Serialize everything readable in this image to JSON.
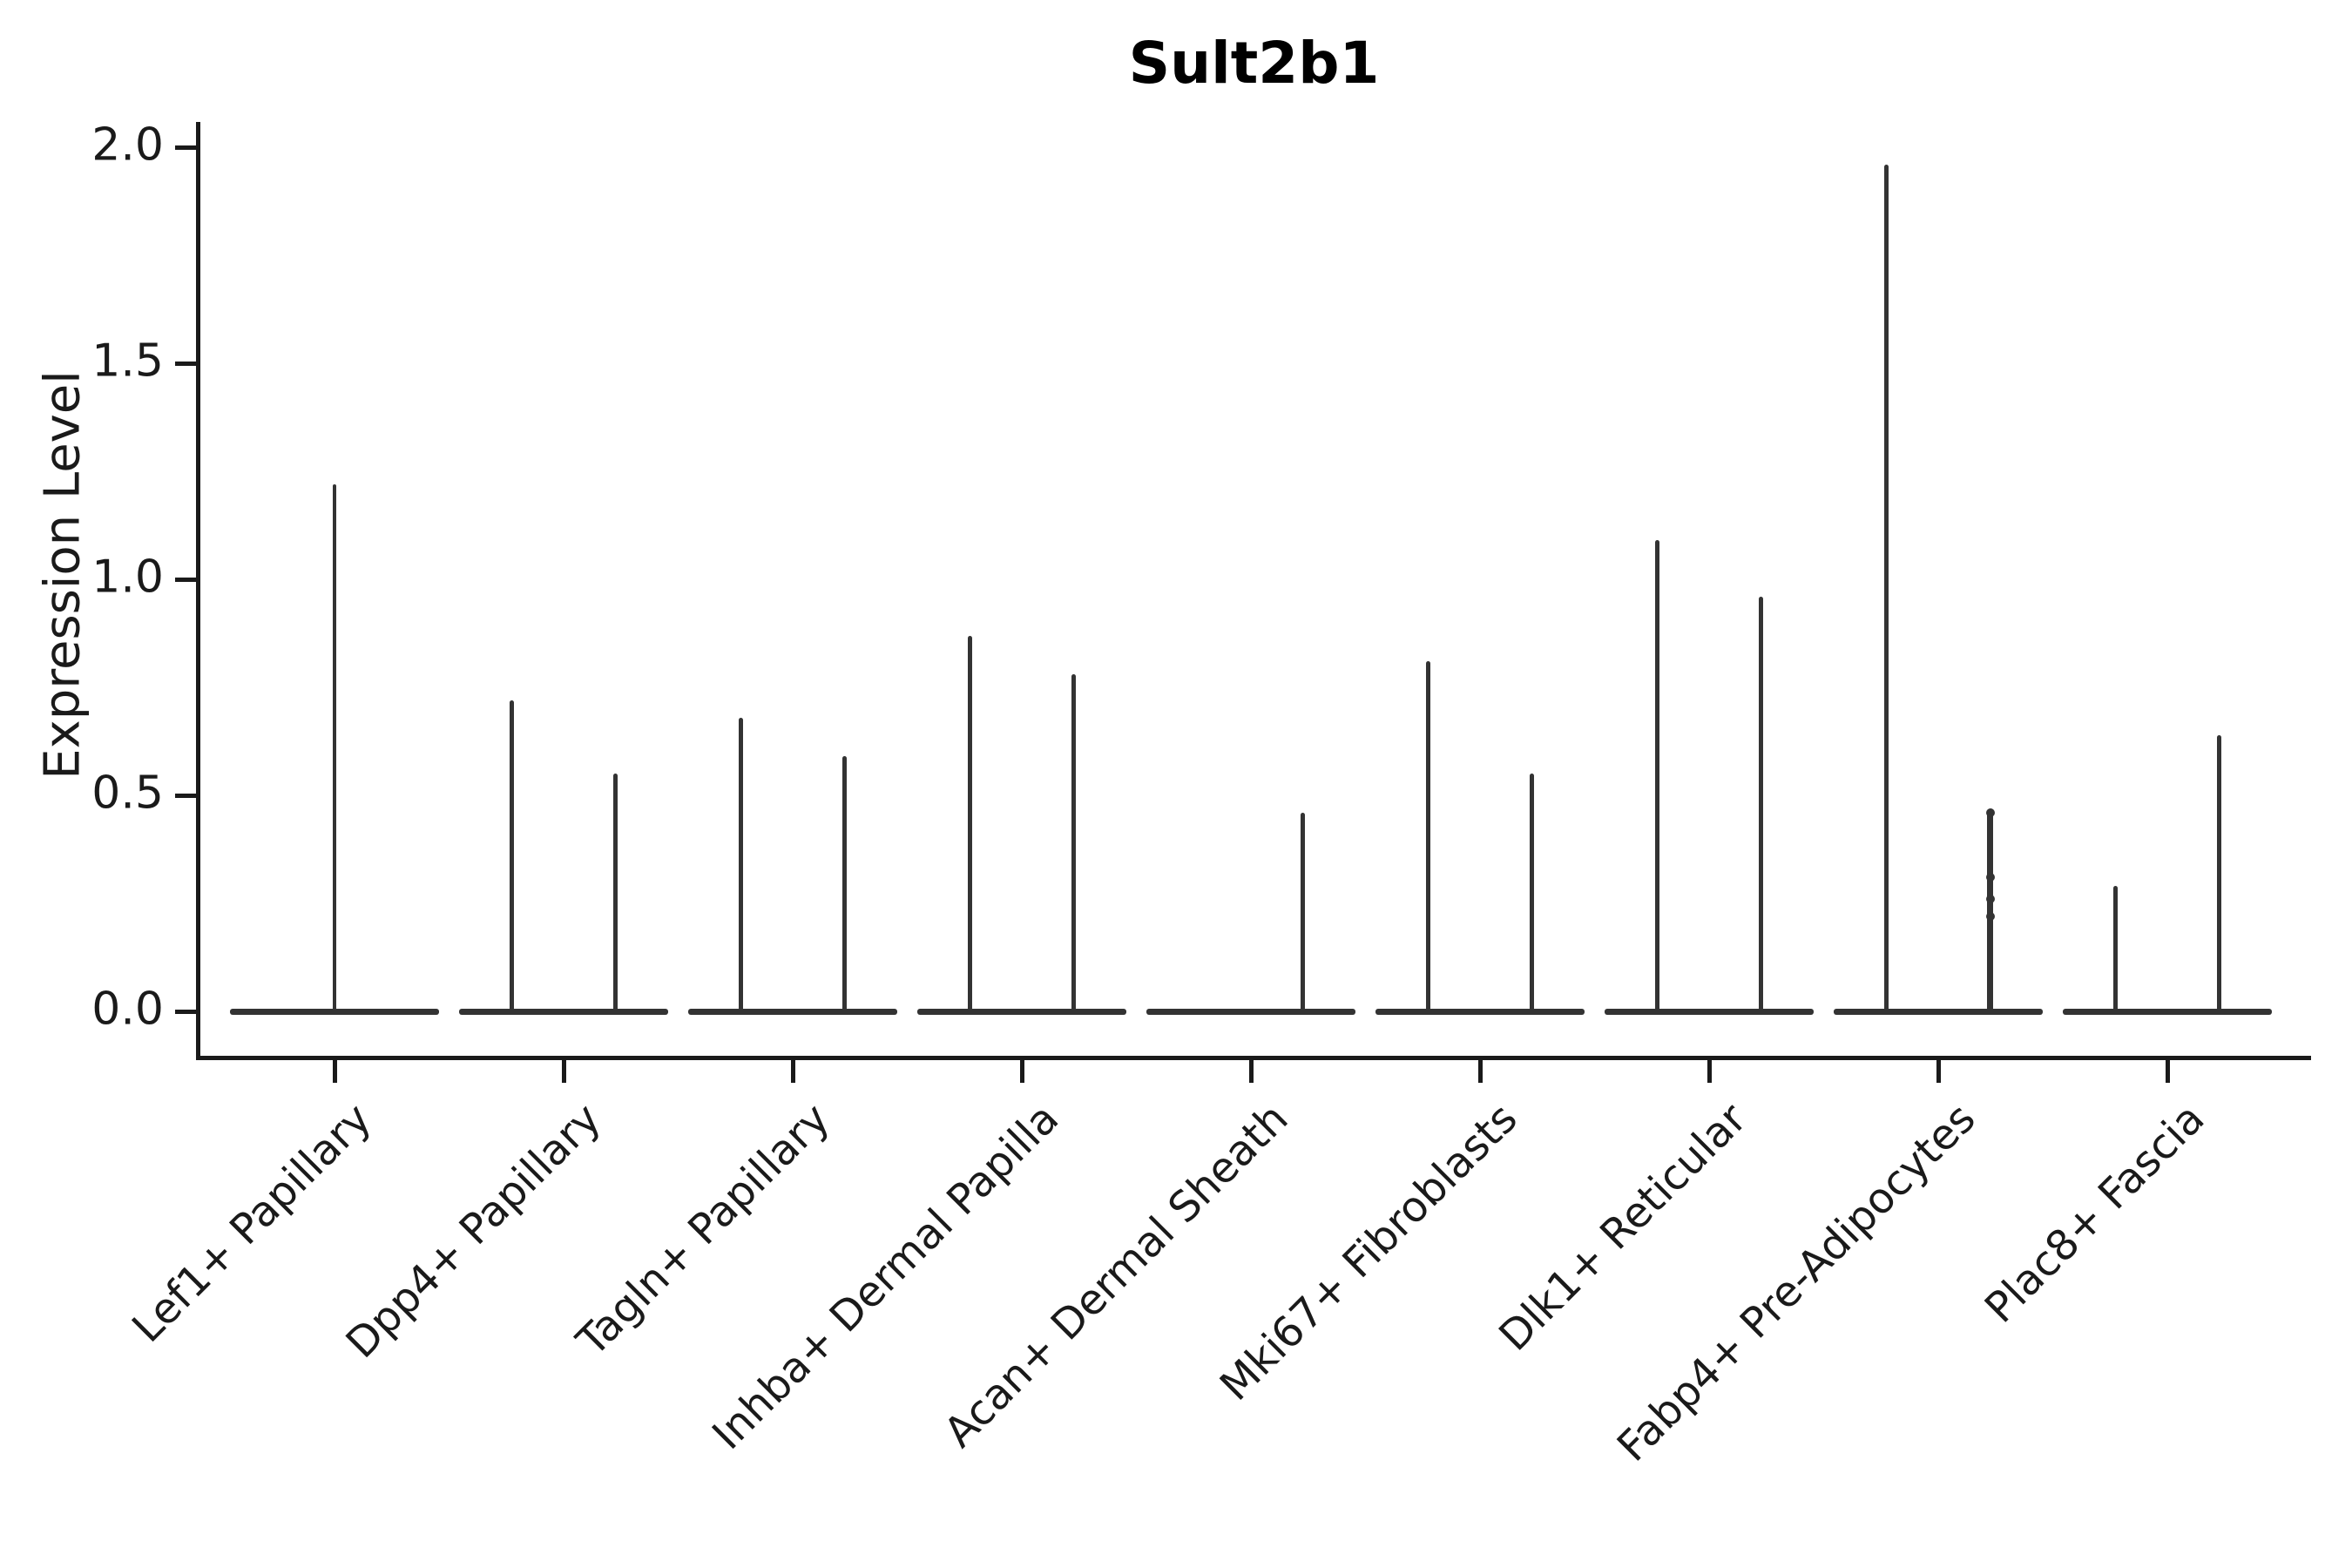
{
  "chart_data": {
    "type": "violin",
    "library_style": "seurat-vlnplot",
    "title": "Sult2b1",
    "xlabel": "",
    "ylabel": "Expression Level",
    "ylim": [
      0,
      2.05
    ],
    "yticks": [
      2.0,
      1.5,
      1.0,
      0.5,
      0.0
    ],
    "ytick_labels": [
      "2.0",
      "1.5",
      "1.0",
      "0.5",
      "0.0"
    ],
    "grid": false,
    "legend": null,
    "background_color": "#ffffff",
    "axis_color": "#1a1a1a",
    "violin_color": "#333333",
    "description": "Single-cell expression violin plot; each category shows flat violins collapsed at 0 with thin spikes rising to the maximum expression value of each sub-violin.",
    "categories": [
      "Lef1+ Papillary",
      "Dpp4+ Papillary",
      "Tagln+ Papillary",
      "Inhba+ Dermal Papilla",
      "Acan+ Dermal Sheath",
      "Mki67+ Fibroblasts",
      "Dlk1+ Reticular",
      "Fabp4+ Pre-Adipocytes",
      "Plac8+ Fascia"
    ],
    "violins": [
      {
        "category": "Lef1+ Papillary",
        "sub_violins": [
          {
            "position": "center",
            "max_expression": 1.22
          }
        ]
      },
      {
        "category": "Dpp4+ Papillary",
        "sub_violins": [
          {
            "position": "left",
            "max_expression": 0.72
          },
          {
            "position": "right",
            "max_expression": 0.55
          }
        ]
      },
      {
        "category": "Tagln+ Papillary",
        "sub_violins": [
          {
            "position": "left",
            "max_expression": 0.68
          },
          {
            "position": "right",
            "max_expression": 0.59
          }
        ]
      },
      {
        "category": "Inhba+ Dermal Papilla",
        "sub_violins": [
          {
            "position": "left",
            "max_expression": 0.87
          },
          {
            "position": "right",
            "max_expression": 0.78
          }
        ]
      },
      {
        "category": "Acan+ Dermal Sheath",
        "sub_violins": [
          {
            "position": "right",
            "max_expression": 0.46
          }
        ]
      },
      {
        "category": "Mki67+ Fibroblasts",
        "sub_violins": [
          {
            "position": "left",
            "max_expression": 0.81
          },
          {
            "position": "right",
            "max_expression": 0.55
          }
        ]
      },
      {
        "category": "Dlk1+ Reticular",
        "sub_violins": [
          {
            "position": "left",
            "max_expression": 1.09
          },
          {
            "position": "right",
            "max_expression": 0.96
          }
        ]
      },
      {
        "category": "Fabp4+ Pre-Adipocytes",
        "sub_violins": [
          {
            "position": "left",
            "max_expression": 1.96
          },
          {
            "position": "right",
            "max_expression": 0.46,
            "points": [
              0.46,
              0.31,
              0.26,
              0.22
            ]
          }
        ]
      },
      {
        "category": "Plac8+ Fascia",
        "sub_violins": [
          {
            "position": "left",
            "max_expression": 0.29
          },
          {
            "position": "right",
            "max_expression": 0.64
          }
        ]
      }
    ]
  }
}
